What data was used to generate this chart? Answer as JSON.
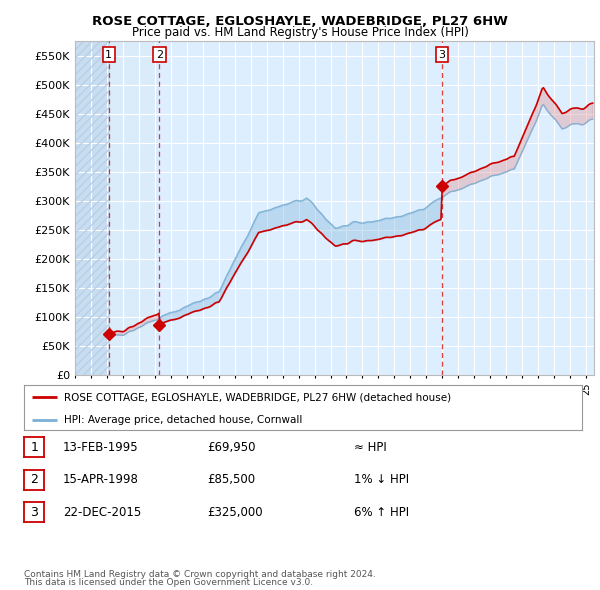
{
  "title": "ROSE COTTAGE, EGLOSHAYLE, WADEBRIDGE, PL27 6HW",
  "subtitle": "Price paid vs. HM Land Registry's House Price Index (HPI)",
  "ylim": [
    0,
    575000
  ],
  "yticks": [
    0,
    50000,
    100000,
    150000,
    200000,
    250000,
    300000,
    350000,
    400000,
    450000,
    500000,
    550000
  ],
  "ytick_labels": [
    "£0",
    "£50K",
    "£100K",
    "£150K",
    "£200K",
    "£250K",
    "£300K",
    "£350K",
    "£400K",
    "£450K",
    "£500K",
    "£550K"
  ],
  "sale_prices": [
    69950,
    85500,
    325000
  ],
  "sale_labels": [
    "1",
    "2",
    "3"
  ],
  "hpi_line_color": "#7bafd4",
  "price_line_color": "#cc0000",
  "sale_marker_color": "#cc0000",
  "dashed_line_color": "#cc0000",
  "plot_bg": "#ddeeff",
  "hatch_bg": "#c8ddf0",
  "legend_label_red": "ROSE COTTAGE, EGLOSHAYLE, WADEBRIDGE, PL27 6HW (detached house)",
  "legend_label_blue": "HPI: Average price, detached house, Cornwall",
  "table_rows": [
    [
      "1",
      "13-FEB-1995",
      "£69,950",
      "≈ HPI"
    ],
    [
      "2",
      "15-APR-1998",
      "£85,500",
      "1% ↓ HPI"
    ],
    [
      "3",
      "22-DEC-2015",
      "£325,000",
      "6% ↑ HPI"
    ]
  ],
  "footnote1": "Contains HM Land Registry data © Crown copyright and database right 2024.",
  "footnote2": "This data is licensed under the Open Government Licence v3.0."
}
